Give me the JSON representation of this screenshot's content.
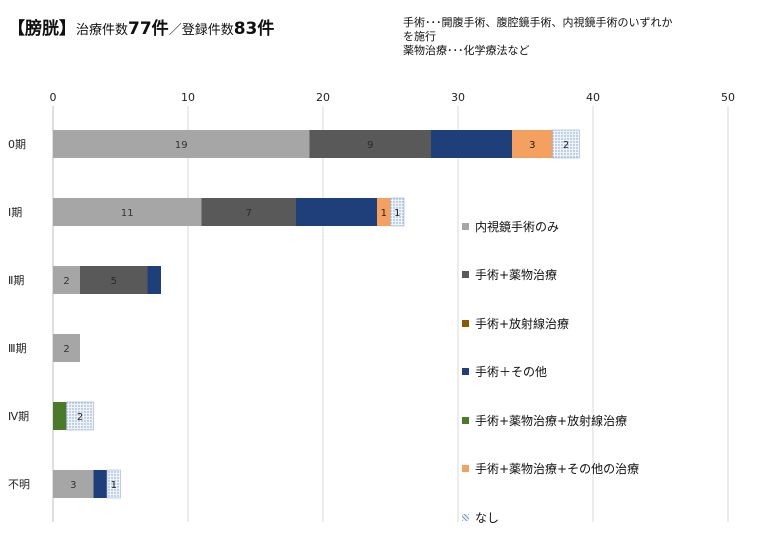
{
  "title": {
    "main": "【膀胱】",
    "treated_label": "治療件数",
    "treated_count": "77件",
    "separator": "／",
    "registered_label": "登録件数",
    "registered_count": "83件"
  },
  "notes": [
    "手術･･･開腹手術、腹腔鏡手術、内視鏡手術のいずれか\nを施行",
    "薬物治療･･･化学療法など"
  ],
  "chart_data": {
    "type": "bar",
    "orientation": "horizontal",
    "stacked": true,
    "title": "",
    "xlabel": "",
    "ylabel": "",
    "xlim": [
      0,
      50
    ],
    "xticks": [
      0,
      10,
      20,
      30,
      40,
      50
    ],
    "xaxis_position": "top",
    "grid": "vertical",
    "legend_position": "right",
    "categories": [
      "0期",
      "Ⅰ期",
      "Ⅱ期",
      "Ⅲ期",
      "Ⅳ期",
      "不明"
    ],
    "series": [
      {
        "name": "内視鏡手術のみ",
        "color": "#a6a6a6",
        "label_color": "#333333",
        "values": [
          19,
          11,
          2,
          2,
          0,
          3
        ]
      },
      {
        "name": "手術+薬物治療",
        "color": "#595959",
        "label_color": "#2a2a2a",
        "values": [
          9,
          7,
          5,
          0,
          0,
          0
        ]
      },
      {
        "name": "手術+放射線治療",
        "color": "#8b5a00",
        "label_color": "#333333",
        "values": [
          0,
          0,
          0,
          0,
          0,
          0
        ]
      },
      {
        "name": "手術＋その他",
        "color": "#1f3f7a",
        "label_color": "#1f3f7a",
        "values": [
          6,
          6,
          1,
          0,
          0,
          1
        ]
      },
      {
        "name": "手術+薬物治療+放射線治療",
        "color": "#4a7a2a",
        "label_color": "#4a7a2a",
        "values": [
          0,
          0,
          0,
          0,
          1,
          0
        ]
      },
      {
        "name": "手術+薬物治療+その他の治療",
        "color": "#f4a060",
        "label_color": "#222222",
        "values": [
          3,
          1,
          0,
          0,
          0,
          0
        ]
      },
      {
        "name": "なし",
        "color": "#dce6f2",
        "pattern": "dots",
        "label_color": "#222222",
        "values": [
          2,
          1,
          0,
          0,
          2,
          1
        ]
      }
    ],
    "data_labels_shown": [
      [
        true,
        true,
        false,
        false,
        false,
        true,
        true
      ],
      [
        true,
        true,
        false,
        false,
        false,
        true,
        true
      ],
      [
        true,
        true,
        false,
        false,
        false,
        false,
        false
      ],
      [
        true,
        false,
        false,
        false,
        false,
        false,
        false
      ],
      [
        false,
        false,
        false,
        false,
        false,
        false,
        true
      ],
      [
        true,
        false,
        false,
        false,
        false,
        false,
        true
      ]
    ]
  }
}
